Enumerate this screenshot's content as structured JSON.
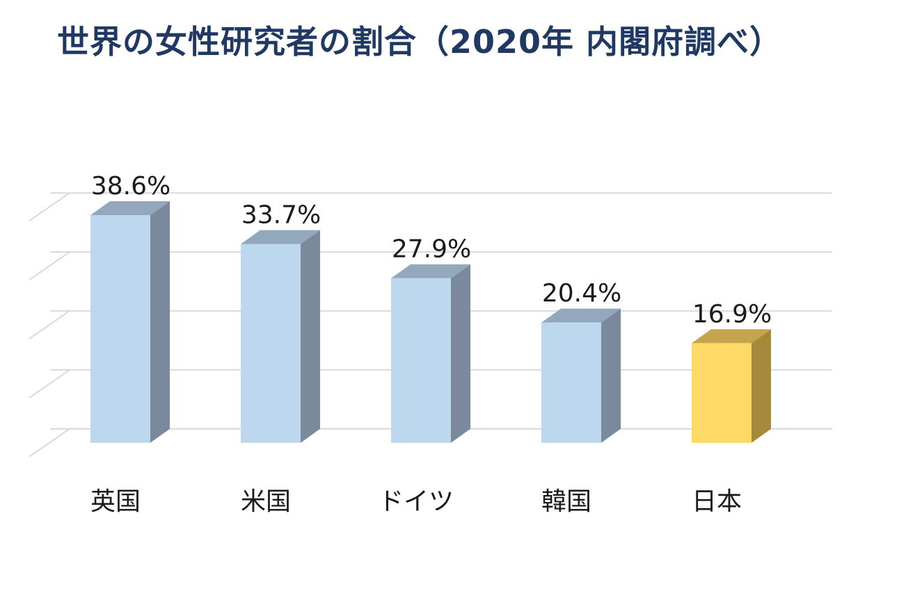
{
  "title": "世界の女性研究者の割合（2020年 内閣府調べ）",
  "chart_data": {
    "type": "bar",
    "categories": [
      "英国",
      "米国",
      "ドイツ",
      "韓国",
      "日本"
    ],
    "values": [
      38.6,
      33.7,
      27.9,
      20.4,
      16.9
    ],
    "value_labels": [
      "38.6%",
      "33.7%",
      "27.9%",
      "20.4%",
      "16.9%"
    ],
    "highlight_category": "日本",
    "ylim": [
      0,
      40
    ],
    "grid": true,
    "colors": {
      "bar_front": "#bdd7ee",
      "bar_side": "#7a8a9c",
      "bar_top": "#93a8bd",
      "highlight_front": "#ffd966",
      "highlight_side": "#a68a3b",
      "highlight_top": "#c4a54c",
      "grid": "#d9d9d9",
      "title": "#1f3864",
      "text": "#1a1a1a"
    }
  }
}
